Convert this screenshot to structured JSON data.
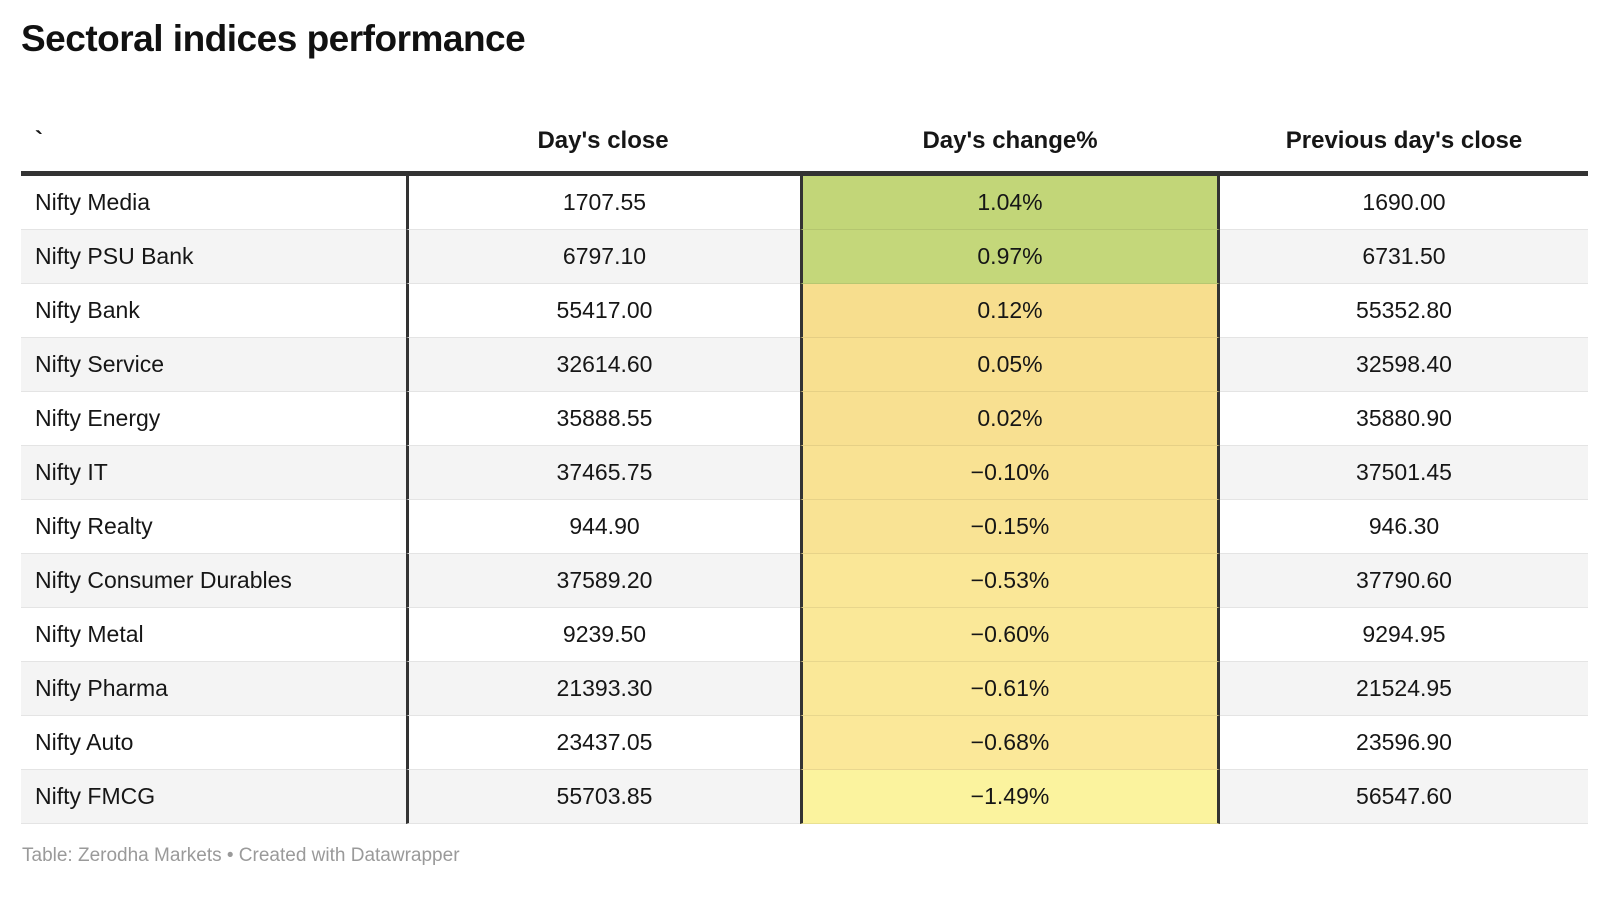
{
  "title": "Sectoral indices performance",
  "footer": {
    "attribution": "Table: Zerodha Markets • Created with Datawrapper"
  },
  "colors": {
    "header_rule": "#333333",
    "column_rule": "#333333",
    "row_stripe": "#f4f4f4",
    "row_divider": "#e4e4e4",
    "footer_text": "#9a9a9a",
    "body_text": "#161616",
    "scale_positive_green": "#c2d678",
    "scale_neutral_yellow": "#f8e091",
    "scale_negative_pale": "#fbf39e"
  },
  "chart_data": {
    "type": "table",
    "title": "Sectoral indices performance",
    "columns": [
      "`",
      "Day's close",
      "Day's change%",
      "Previous day's close"
    ],
    "rows": [
      {
        "index": "Nifty Media",
        "close": "1707.55",
        "change": "1.04%",
        "prev": "1690.00",
        "change_color": "#c2d678"
      },
      {
        "index": "Nifty PSU Bank",
        "close": "6797.10",
        "change": "0.97%",
        "prev": "6731.50",
        "change_color": "#c4d77a"
      },
      {
        "index": "Nifty Bank",
        "close": "55417.00",
        "change": "0.12%",
        "prev": "55352.80",
        "change_color": "#f7de8e"
      },
      {
        "index": "Nifty Service",
        "close": "32614.60",
        "change": "0.05%",
        "prev": "32598.40",
        "change_color": "#f8e090"
      },
      {
        "index": "Nifty Energy",
        "close": "35888.55",
        "change": "0.02%",
        "prev": "35880.90",
        "change_color": "#f8e091"
      },
      {
        "index": "Nifty IT",
        "close": "37465.75",
        "change": "−0.10%",
        "prev": "37501.45",
        "change_color": "#f9e293"
      },
      {
        "index": "Nifty Realty",
        "close": "944.90",
        "change": "−0.15%",
        "prev": "946.30",
        "change_color": "#f9e394"
      },
      {
        "index": "Nifty Consumer Durables",
        "close": "37589.20",
        "change": "−0.53%",
        "prev": "37790.60",
        "change_color": "#fae797"
      },
      {
        "index": "Nifty Metal",
        "close": "9239.50",
        "change": "−0.60%",
        "prev": "9294.95",
        "change_color": "#fae898"
      },
      {
        "index": "Nifty Pharma",
        "close": "21393.30",
        "change": "−0.61%",
        "prev": "21524.95",
        "change_color": "#fae898"
      },
      {
        "index": "Nifty Auto",
        "close": "23437.05",
        "change": "−0.68%",
        "prev": "23596.90",
        "change_color": "#fbe899"
      },
      {
        "index": "Nifty FMCG",
        "close": "55703.85",
        "change": "−1.49%",
        "prev": "56547.60",
        "change_color": "#fbf39e"
      }
    ]
  }
}
